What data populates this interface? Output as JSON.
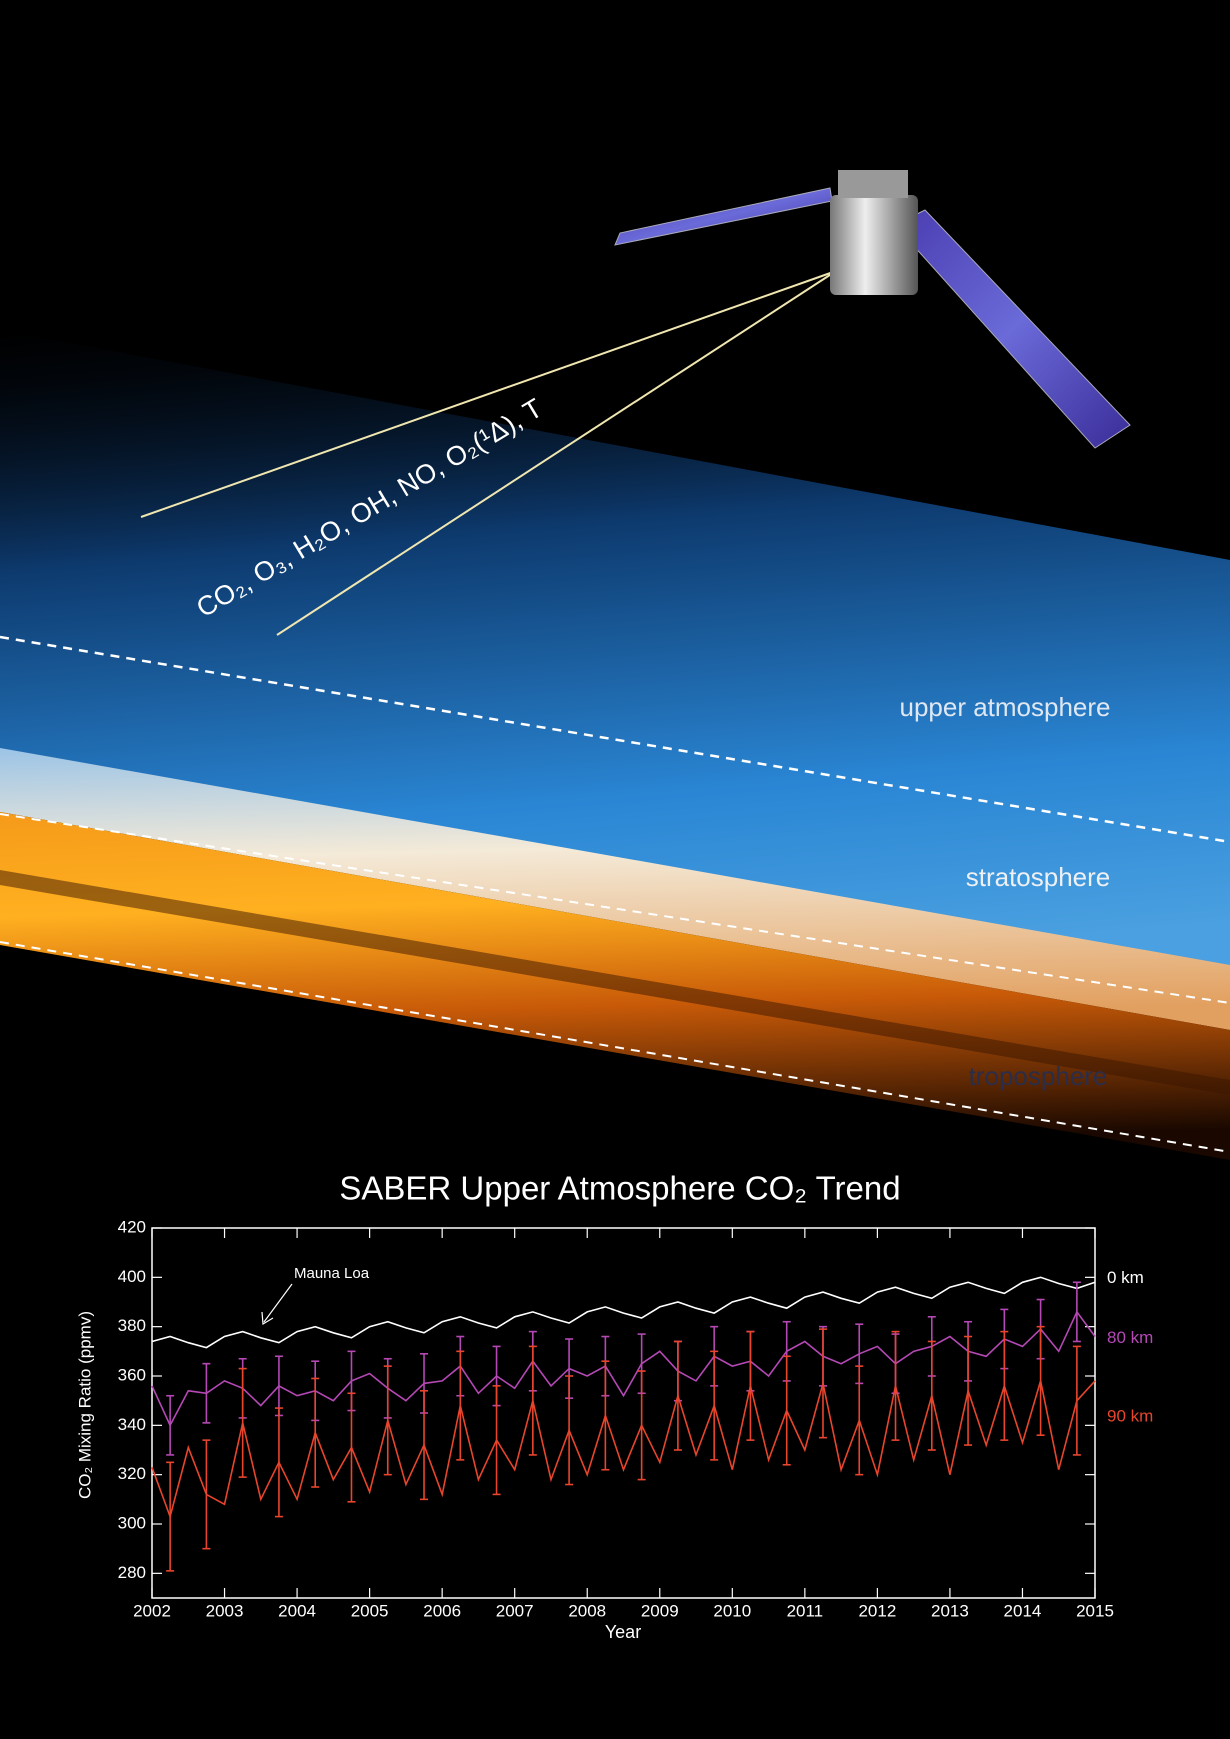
{
  "illustration": {
    "species": "CO₂, O₃, H₂O, OH, NO, O₂(¹Δ), T",
    "layers": [
      "upper atmosphere",
      "stratosphere",
      "troposphere"
    ]
  },
  "chart_data": {
    "type": "line",
    "title": "SABER Upper Atmosphere CO₂ Trend",
    "x_label": "Year",
    "y_label": "CO₂ Mixing Ratio (ppmv)",
    "annotation": "Mauna Loa",
    "xlim": [
      2002,
      2015
    ],
    "xticks": [
      2002,
      2003,
      2004,
      2005,
      2006,
      2007,
      2008,
      2009,
      2010,
      2011,
      2012,
      2013,
      2014,
      2015
    ],
    "ylim": [
      270,
      420
    ],
    "yticks": [
      280,
      300,
      320,
      340,
      360,
      380,
      400,
      420
    ],
    "x": [
      2002,
      2002.25,
      2002.5,
      2002.75,
      2003,
      2003.25,
      2003.5,
      2003.75,
      2004,
      2004.25,
      2004.5,
      2004.75,
      2005,
      2005.25,
      2005.5,
      2005.75,
      2006,
      2006.25,
      2006.5,
      2006.75,
      2007,
      2007.25,
      2007.5,
      2007.75,
      2008,
      2008.25,
      2008.5,
      2008.75,
      2009,
      2009.25,
      2009.5,
      2009.75,
      2010,
      2010.25,
      2010.5,
      2010.75,
      2011,
      2011.25,
      2011.5,
      2011.75,
      2012,
      2012.25,
      2012.5,
      2012.75,
      2013,
      2013.25,
      2013.5,
      2013.75,
      2014,
      2014.25,
      2014.5,
      2014.75,
      2015
    ],
    "series": [
      {
        "name": "0 km",
        "color": "#ffffff",
        "values": [
          374,
          376,
          373.5,
          371.5,
          376,
          378,
          375.5,
          373.5,
          378,
          380,
          377.5,
          375.5,
          380,
          382,
          379.5,
          377.5,
          382,
          384,
          381.5,
          379.5,
          384,
          386,
          383.5,
          381.5,
          386,
          388,
          385.5,
          383.5,
          388,
          390,
          387.5,
          385.5,
          390,
          392,
          389.5,
          387.5,
          392,
          394,
          391.5,
          389.5,
          394,
          396,
          393.5,
          391.5,
          396,
          398,
          395.5,
          393.5,
          398,
          400,
          397.5,
          395.5,
          398
        ]
      },
      {
        "name": "80 km",
        "color": "#b548b5",
        "values": [
          356,
          340,
          354,
          353,
          358,
          355,
          348,
          356,
          352,
          354,
          350,
          358,
          361,
          355,
          350,
          357,
          358,
          364,
          353,
          360,
          355,
          366,
          356,
          363,
          360,
          364,
          352,
          365,
          370,
          362,
          358,
          368,
          364,
          366,
          360,
          370,
          374,
          368,
          365,
          369,
          372,
          365,
          370,
          372,
          376,
          370,
          368,
          375,
          372,
          379,
          370,
          386,
          376
        ],
        "errors": [
          null,
          12,
          null,
          12,
          null,
          12,
          null,
          12,
          null,
          12,
          null,
          12,
          null,
          12,
          null,
          12,
          null,
          12,
          null,
          12,
          null,
          12,
          null,
          12,
          null,
          12,
          null,
          12,
          null,
          12,
          null,
          12,
          null,
          12,
          null,
          12,
          null,
          12,
          null,
          12,
          null,
          12,
          null,
          12,
          null,
          12,
          null,
          12,
          null,
          12,
          null,
          12,
          null
        ]
      },
      {
        "name": "90 km",
        "color": "#e8452c",
        "values": [
          323,
          303,
          331,
          312,
          308,
          341,
          310,
          325,
          310,
          337,
          318,
          331,
          313,
          342,
          316,
          332,
          312,
          348,
          318,
          334,
          322,
          350,
          318,
          338,
          320,
          344,
          322,
          340,
          325,
          352,
          328,
          348,
          322,
          356,
          326,
          346,
          330,
          357,
          322,
          342,
          320,
          356,
          326,
          352,
          320,
          354,
          332,
          356,
          333,
          358,
          322,
          350,
          358
        ],
        "errors": [
          null,
          22,
          null,
          22,
          null,
          22,
          null,
          22,
          null,
          22,
          null,
          22,
          null,
          22,
          null,
          22,
          null,
          22,
          null,
          22,
          null,
          22,
          null,
          22,
          null,
          22,
          null,
          22,
          null,
          22,
          null,
          22,
          null,
          22,
          null,
          22,
          null,
          22,
          null,
          22,
          null,
          22,
          null,
          22,
          null,
          22,
          null,
          22,
          null,
          22,
          null,
          22,
          null
        ]
      }
    ]
  }
}
